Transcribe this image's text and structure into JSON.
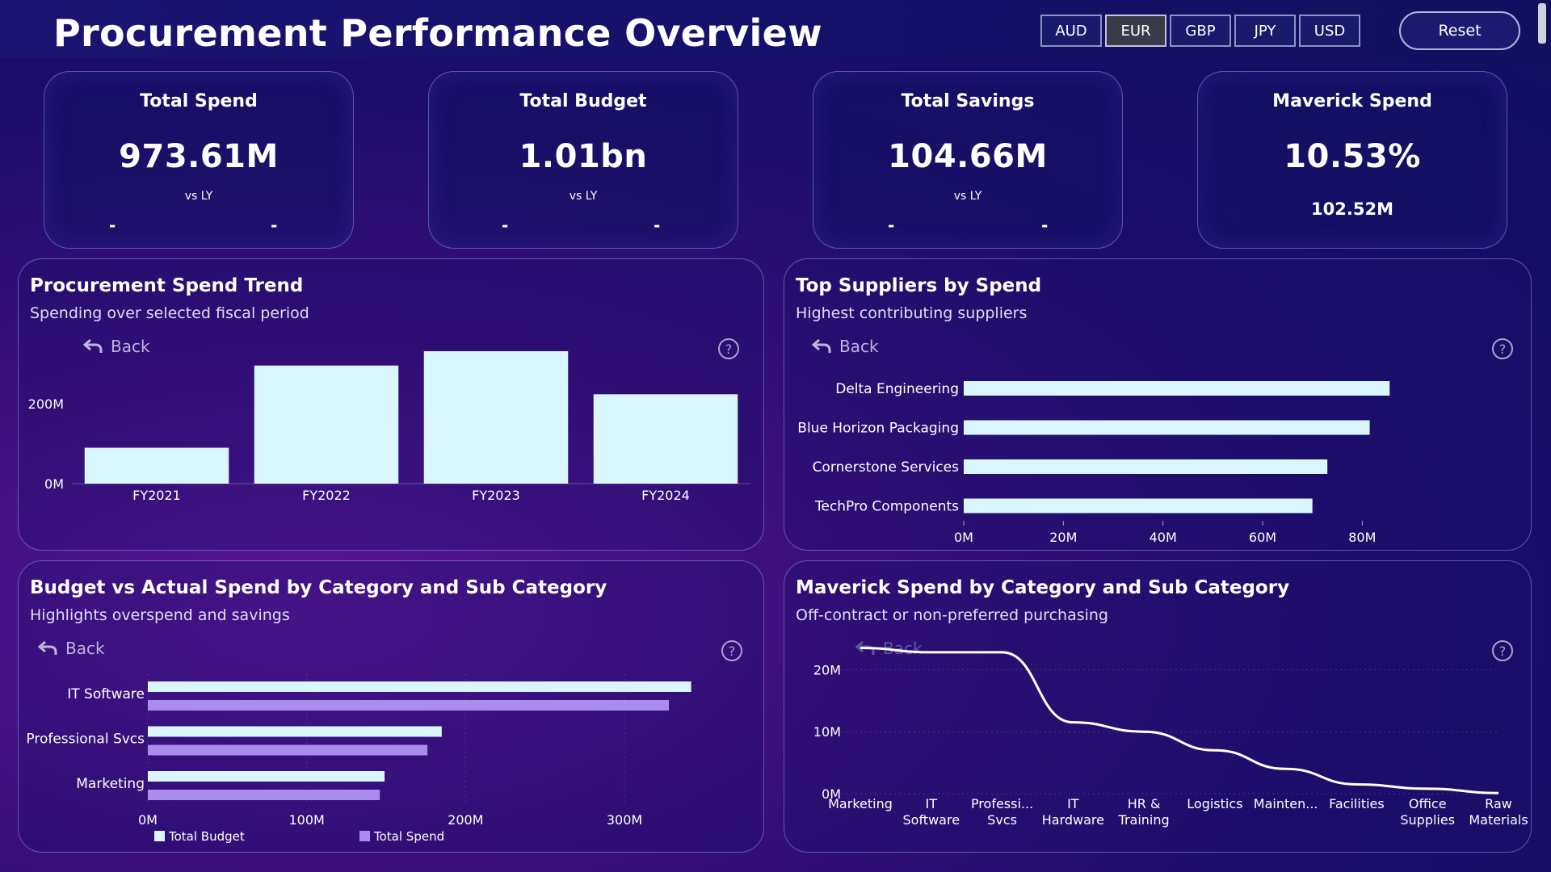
{
  "header": {
    "title": "Procurement Performance Overview",
    "currencies": [
      "AUD",
      "EUR",
      "GBP",
      "JPY",
      "USD"
    ],
    "selected_currency": "EUR",
    "reset_label": "Reset"
  },
  "kpis": [
    {
      "title": "Total Spend",
      "value": "973.61M",
      "vs_label": "vs LY",
      "dash_left": "-",
      "dash_right": "-"
    },
    {
      "title": "Total Budget",
      "value": "1.01bn",
      "vs_label": "vs LY",
      "dash_left": "-",
      "dash_right": "-"
    },
    {
      "title": "Total Savings",
      "value": "104.66M",
      "vs_label": "vs LY",
      "dash_left": "-",
      "dash_right": "-"
    },
    {
      "title": "Maverick Spend",
      "value": "10.53%",
      "sub_value": "102.52M"
    }
  ],
  "panels": {
    "trend": {
      "title": "Procurement Spend Trend",
      "subtitle": "Spending over selected fiscal period",
      "back_label": "Back",
      "help": "?"
    },
    "suppliers": {
      "title": "Top Suppliers by Spend",
      "subtitle": "Highest contributing suppliers",
      "back_label": "Back",
      "help": "?"
    },
    "budget": {
      "title": "Budget vs Actual Spend by Category and Sub Category",
      "subtitle": "Highlights overspend and savings",
      "back_label": "Back",
      "help": "?"
    },
    "maverick": {
      "title": "Maverick Spend by Category and Sub Category",
      "subtitle": "Off-contract or non-preferred purchasing",
      "back_label": "Back",
      "help": "?"
    }
  },
  "chart_data": [
    {
      "id": "trend",
      "type": "bar",
      "categories": [
        "FY2021",
        "FY2022",
        "FY2023",
        "FY2024"
      ],
      "values": [
        90,
        296,
        332,
        224
      ],
      "ylim": [
        0,
        340
      ],
      "yticks": [
        {
          "v": 0,
          "label": "0M"
        },
        {
          "v": 200,
          "label": "200M"
        }
      ],
      "color": "#daf6ff"
    },
    {
      "id": "suppliers",
      "type": "bar",
      "orientation": "horizontal",
      "categories": [
        "Delta Engineering",
        "Blue Horizon Packaging",
        "Cornerstone Services",
        "TechPro Components"
      ],
      "values": [
        85.5,
        81.5,
        73.0,
        70.0
      ],
      "xlim": [
        0,
        90
      ],
      "xticks": [
        {
          "v": 0,
          "label": "0M"
        },
        {
          "v": 20,
          "label": "20M"
        },
        {
          "v": 40,
          "label": "40M"
        },
        {
          "v": 60,
          "label": "60M"
        },
        {
          "v": 80,
          "label": "80M"
        }
      ],
      "color": "#daf6ff"
    },
    {
      "id": "budget",
      "type": "bar",
      "orientation": "horizontal",
      "categories": [
        "IT Software",
        "Professional Svcs",
        "Marketing"
      ],
      "series": [
        {
          "name": "Total Budget",
          "values": [
            342,
            185,
            149
          ],
          "color": "#daf6ff"
        },
        {
          "name": "Total Spend",
          "values": [
            328,
            176,
            146
          ],
          "color": "#a98ceb"
        }
      ],
      "xlim": [
        0,
        360
      ],
      "xticks": [
        {
          "v": 0,
          "label": "0M"
        },
        {
          "v": 100,
          "label": "100M"
        },
        {
          "v": 200,
          "label": "200M"
        },
        {
          "v": 300,
          "label": "300M"
        }
      ],
      "legend": "bottom"
    },
    {
      "id": "maverick",
      "type": "line",
      "categories": [
        "Marketing",
        "IT\nSoftware",
        "Professi...\nSvcs",
        "IT\nHardware",
        "HR &\nTraining",
        "Logistics",
        "Mainten...",
        "Facilities",
        "Office\nSupplies",
        "Raw\nMaterials"
      ],
      "values": [
        23.5,
        22.8,
        22.8,
        11.5,
        10.0,
        7.0,
        4.0,
        1.5,
        0.8,
        0.1
      ],
      "ylim": [
        0,
        25
      ],
      "yticks": [
        {
          "v": 0,
          "label": "0M"
        },
        {
          "v": 10,
          "label": "10M"
        },
        {
          "v": 20,
          "label": "20M"
        }
      ],
      "color": "#ffffff"
    }
  ]
}
